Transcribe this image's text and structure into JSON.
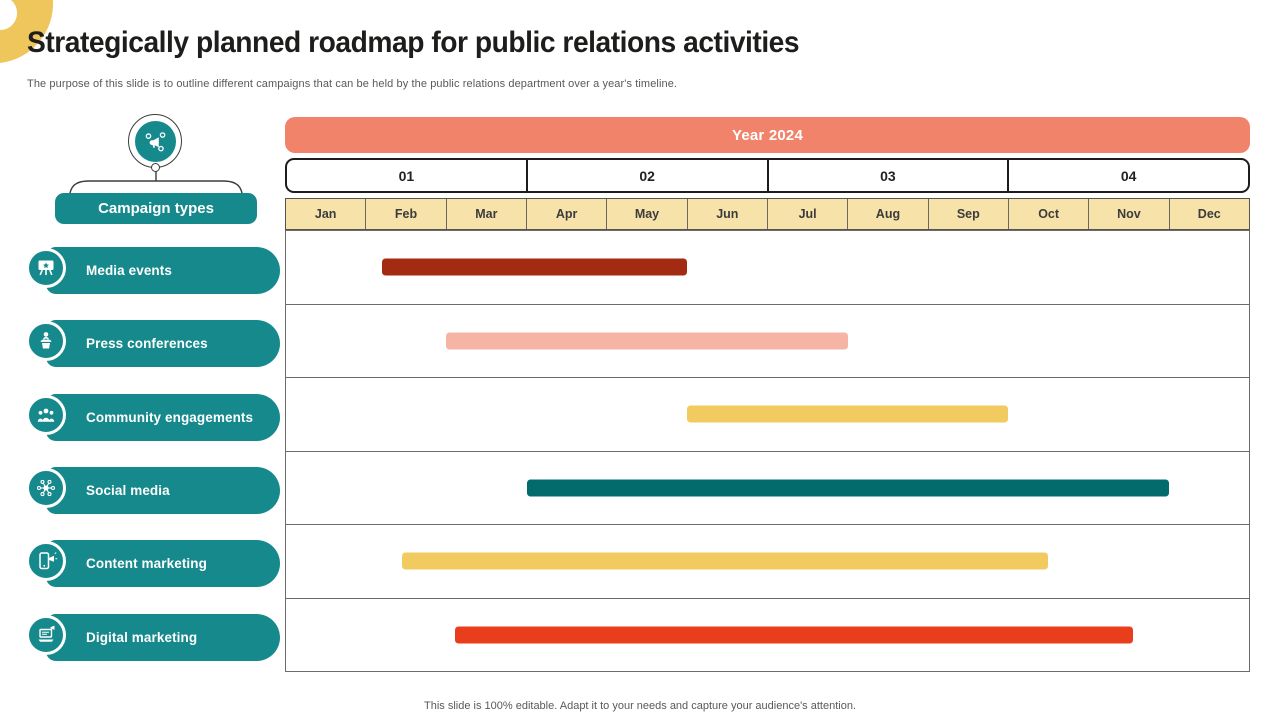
{
  "slide": {
    "title": "Strategically planned roadmap for public relations activities",
    "subtitle": "The purpose of this slide is to outline different campaigns that can be held by the public relations department over a year's timeline.",
    "footer": "This slide is 100% editable. Adapt it to your needs and capture your audience's attention."
  },
  "colors": {
    "teal": "#16898c",
    "salmon": "#f0836a",
    "cream": "#f7e2a9",
    "corner_yellow": "#efc65c",
    "ink": "#1d1d1b",
    "muted_text": "#595959",
    "grid_line": "#6b6b6b"
  },
  "sidebar": {
    "header": "Campaign types",
    "items": [
      {
        "label": "Media events",
        "icon": "media-events-icon"
      },
      {
        "label": "Press conferences",
        "icon": "press-conferences-icon"
      },
      {
        "label": "Community engagements",
        "icon": "community-engagements-icon"
      },
      {
        "label": "Social media",
        "icon": "social-media-icon"
      },
      {
        "label": "Content marketing",
        "icon": "content-marketing-icon"
      },
      {
        "label": "Digital marketing",
        "icon": "digital-marketing-icon"
      }
    ]
  },
  "chart_data": {
    "type": "gantt",
    "title": "Year 2024",
    "quarters": [
      "01",
      "02",
      "03",
      "04"
    ],
    "months": [
      "Jan",
      "Feb",
      "Mar",
      "Apr",
      "May",
      "Jun",
      "Jul",
      "Aug",
      "Sep",
      "Oct",
      "Nov",
      "Dec"
    ],
    "month_scale_note": "start_month/end_month on a 0-12 axis where 0 = start of Jan and 12 = end of Dec",
    "rows": [
      {
        "label": "Media events",
        "start_month": 1.2,
        "end_month": 5.0,
        "color": "#a32b12"
      },
      {
        "label": "Press conferences",
        "start_month": 2.0,
        "end_month": 7.0,
        "color": "#f6b4a4"
      },
      {
        "label": "Community engagements",
        "start_month": 5.0,
        "end_month": 9.0,
        "color": "#f1cb5f"
      },
      {
        "label": "Social media",
        "start_month": 3.0,
        "end_month": 11.0,
        "color": "#046b6c"
      },
      {
        "label": "Content marketing",
        "start_month": 1.45,
        "end_month": 9.5,
        "color": "#f1cb5f"
      },
      {
        "label": "Digital marketing",
        "start_month": 2.1,
        "end_month": 10.55,
        "color": "#e83e1b"
      }
    ],
    "legend": "none",
    "grid": "horizontal row dividers only"
  }
}
